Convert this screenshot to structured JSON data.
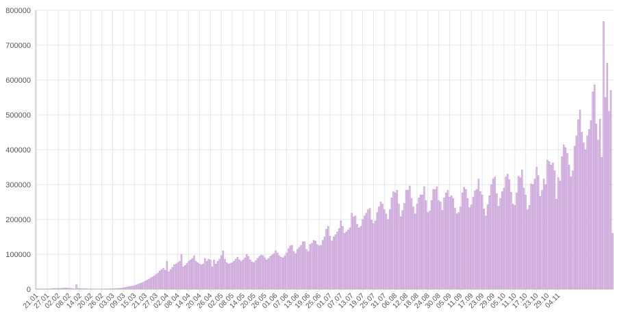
{
  "chart_data": {
    "type": "bar",
    "title": "",
    "xlabel": "",
    "ylabel": "",
    "ylim": [
      0,
      800000
    ],
    "yticks": [
      0,
      100000,
      200000,
      300000,
      400000,
      500000,
      600000,
      700000,
      800000
    ],
    "grid": true,
    "legend": "none",
    "colors": {
      "bar_fill": "#dcbfe6",
      "bar_stroke": "#c49ad4",
      "grid": "#e6e6e6"
    },
    "x_tick_labels": [
      "21.01",
      "27.01",
      "02.02",
      "08.02",
      "14.02",
      "20.02",
      "26.02",
      "03.03",
      "09.03",
      "15.03",
      "21.03",
      "27.03",
      "02.04",
      "08.04",
      "14.04",
      "20.04",
      "26.04",
      "02.05",
      "08.05",
      "14.05",
      "20.05",
      "26.05",
      "01.06",
      "07.06",
      "13.06",
      "19.06",
      "25.06",
      "01.07",
      "07.07",
      "13.07",
      "19.07",
      "25.07",
      "31.07",
      "06.08",
      "12.08",
      "18.08",
      "24.08",
      "30.08",
      "05.09",
      "11.09",
      "17.09",
      "23.09",
      "29.09",
      "05.10",
      "11.10",
      "17.10",
      "23.10",
      "29.10",
      "04.11"
    ],
    "x_tick_interval_days": 6,
    "first_date": "21.01",
    "values": [
      1000,
      1000,
      1000,
      1000,
      1000,
      1000,
      1000,
      1000,
      1500,
      1800,
      2000,
      2200,
      2500,
      2000,
      2500,
      3000,
      3500,
      3000,
      2500,
      2500,
      1500,
      1200,
      13500,
      2500,
      1800,
      1600,
      1400,
      1500,
      1200,
      1000,
      1000,
      900,
      800,
      800,
      700,
      700,
      800,
      800,
      1000,
      1000,
      1200,
      1400,
      1600,
      1800,
      2000,
      2200,
      2500,
      3000,
      4000,
      5000,
      6000,
      7000,
      8000,
      9000,
      10000,
      12000,
      14000,
      16000,
      18000,
      20000,
      23000,
      26000,
      29000,
      32000,
      35000,
      38000,
      42000,
      46000,
      52000,
      56000,
      60000,
      54000,
      80000,
      50000,
      56000,
      62000,
      70000,
      72000,
      76000,
      80000,
      100000,
      64000,
      68000,
      74000,
      80000,
      84000,
      88000,
      96000,
      80000,
      76000,
      72000,
      70000,
      72000,
      88000,
      80000,
      86000,
      84000,
      64000,
      84000,
      72000,
      80000,
      86000,
      96000,
      110000,
      86000,
      76000,
      72000,
      74000,
      76000,
      80000,
      86000,
      92000,
      84000,
      80000,
      84000,
      90000,
      100000,
      94000,
      84000,
      78000,
      76000,
      82000,
      88000,
      94000,
      98000,
      96000,
      90000,
      84000,
      88000,
      94000,
      98000,
      102000,
      110000,
      104000,
      96000,
      92000,
      90000,
      96000,
      104000,
      116000,
      124000,
      126000,
      108000,
      102000,
      114000,
      120000,
      126000,
      136000,
      136000,
      114000,
      108000,
      128000,
      132000,
      140000,
      138000,
      128000,
      124000,
      126000,
      140000,
      150000,
      172000,
      180000,
      152000,
      138000,
      150000,
      156000,
      164000,
      174000,
      196000,
      180000,
      160000,
      164000,
      170000,
      176000,
      218000,
      208000,
      210000,
      186000,
      176000,
      180000,
      200000,
      210000,
      218000,
      228000,
      232000,
      198000,
      188000,
      196000,
      220000,
      236000,
      250000,
      244000,
      228000,
      216000,
      200000,
      228000,
      262000,
      280000,
      276000,
      284000,
      244000,
      208000,
      226000,
      246000,
      284000,
      284000,
      296000,
      260000,
      236000,
      216000,
      244000,
      262000,
      270000,
      270000,
      294000,
      254000,
      220000,
      224000,
      254000,
      286000,
      286000,
      294000,
      254000,
      250000,
      226000,
      262000,
      276000,
      284000,
      264000,
      268000,
      260000,
      232000,
      216000,
      220000,
      236000,
      276000,
      292000,
      286000,
      260000,
      234000,
      242000,
      264000,
      282000,
      286000,
      316000,
      280000,
      270000,
      230000,
      210000,
      242000,
      268000,
      300000,
      316000,
      322000,
      274000,
      238000,
      260000,
      280000,
      290000,
      322000,
      330000,
      314000,
      278000,
      244000,
      240000,
      276000,
      324000,
      320000,
      342000,
      290000,
      270000,
      228000,
      240000,
      302000,
      300000,
      316000,
      350000,
      326000,
      266000,
      284000,
      316000,
      300000,
      370000,
      366000,
      356000,
      362000,
      340000,
      258000,
      320000,
      310000,
      380000,
      414000,
      406000,
      390000,
      356000,
      322000,
      340000,
      410000,
      440000,
      486000,
      514000,
      450000,
      420000,
      400000,
      440000,
      458000,
      484000,
      566000,
      586000,
      474000,
      428000,
      488000,
      378000,
      768000,
      550000,
      648000,
      510000,
      570000,
      160000
    ]
  }
}
